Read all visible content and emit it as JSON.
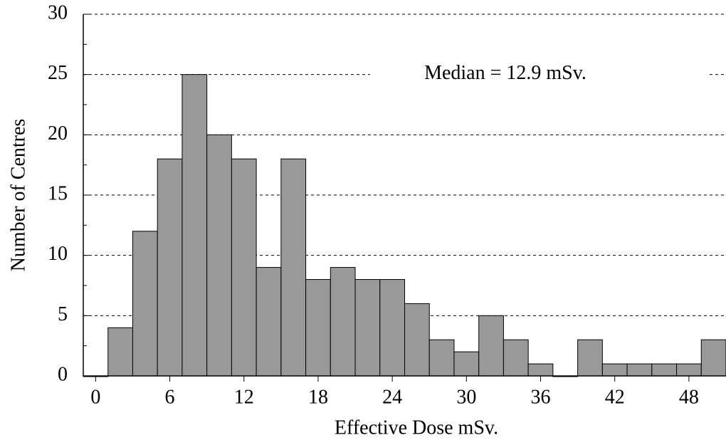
{
  "chart_data": {
    "type": "histogram",
    "xlabel": "Effective Dose mSv.",
    "ylabel": "Number of Centres",
    "annotation": "Median = 12.9 mSv.",
    "bins": [
      -1,
      1,
      3,
      5,
      7,
      9,
      11,
      13,
      15,
      17,
      19,
      21,
      23,
      25,
      27,
      29,
      31,
      33,
      35,
      37,
      39,
      41,
      43,
      45,
      47,
      49,
      51
    ],
    "values": [
      0,
      4,
      12,
      18,
      25,
      20,
      18,
      9,
      18,
      8,
      9,
      8,
      8,
      6,
      3,
      2,
      5,
      3,
      1,
      0,
      3,
      1,
      1,
      1,
      1,
      3
    ],
    "color": "#999999",
    "xlim": [
      -1,
      51
    ],
    "xticks": [
      0,
      6,
      12,
      18,
      24,
      30,
      36,
      42,
      48
    ],
    "ylim": [
      0,
      30
    ],
    "yticks": [
      0,
      5,
      10,
      15,
      20,
      25,
      30
    ],
    "yminorticks": [
      2.5,
      7.5,
      12.5,
      17.5,
      22.5,
      27.5
    ],
    "grid": true
  }
}
